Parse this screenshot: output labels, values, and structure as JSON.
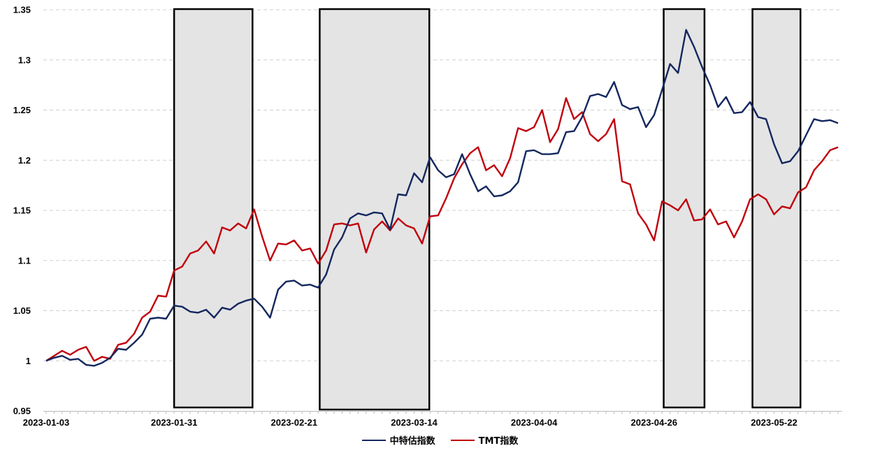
{
  "chart_data": {
    "type": "line",
    "xlabel": "",
    "ylabel": "",
    "ylim": [
      0.95,
      1.35
    ],
    "yticks": [
      0.95,
      1,
      1.05,
      1.1,
      1.15,
      1.2,
      1.25,
      1.3,
      1.35
    ],
    "ytick_labels": [
      "0.95",
      "1",
      "1.05",
      "1.1",
      "1.15",
      "1.2",
      "1.25",
      "1.3",
      "1.35"
    ],
    "x_tick_labels": [
      {
        "index": 0,
        "label": "2023-01-03"
      },
      {
        "index": 16,
        "label": "2023-01-31"
      },
      {
        "index": 31,
        "label": "2023-02-21"
      },
      {
        "index": 46,
        "label": "2023-03-14"
      },
      {
        "index": 61,
        "label": "2023-04-04"
      },
      {
        "index": 76,
        "label": "2023-04-26"
      },
      {
        "index": 91,
        "label": "2023-05-22"
      }
    ],
    "grid": "horizontal dashed",
    "legend_position": "bottom",
    "colors": {
      "background": "#ffffff",
      "shade": "#e4e4e4",
      "shade_border": "#000000",
      "grid": "#cfcfcf"
    },
    "shaded_regions": [
      {
        "start": 16.0,
        "end": 25.8
      },
      {
        "start": 34.2,
        "end": 47.9
      },
      {
        "start": 77.2,
        "end": 82.3
      },
      {
        "start": 88.3,
        "end": 94.3
      }
    ],
    "series": [
      {
        "name": "中特估指数",
        "color": "#14275e",
        "values": [
          1.0,
          1.003,
          1.005,
          1.001,
          1.002,
          0.996,
          0.995,
          0.998,
          1.003,
          1.012,
          1.011,
          1.018,
          1.026,
          1.042,
          1.043,
          1.042,
          1.055,
          1.054,
          1.049,
          1.048,
          1.051,
          1.043,
          1.053,
          1.051,
          1.057,
          1.06,
          1.062,
          1.054,
          1.043,
          1.071,
          1.079,
          1.08,
          1.075,
          1.076,
          1.073,
          1.086,
          1.111,
          1.123,
          1.142,
          1.147,
          1.145,
          1.148,
          1.147,
          1.131,
          1.166,
          1.165,
          1.187,
          1.178,
          1.203,
          1.19,
          1.183,
          1.186,
          1.206,
          1.186,
          1.169,
          1.174,
          1.164,
          1.165,
          1.169,
          1.178,
          1.209,
          1.21,
          1.206,
          1.206,
          1.207,
          1.228,
          1.229,
          1.243,
          1.264,
          1.266,
          1.263,
          1.278,
          1.255,
          1.251,
          1.253,
          1.233,
          1.245,
          1.27,
          1.296,
          1.287,
          1.33,
          1.313,
          1.293,
          1.275,
          1.253,
          1.263,
          1.247,
          1.248,
          1.258,
          1.243,
          1.241,
          1.216,
          1.197,
          1.199,
          1.209,
          1.225,
          1.241,
          1.239,
          1.24,
          1.237
        ]
      },
      {
        "name": "TMT指数",
        "color": "#c0000c",
        "values": [
          1.0,
          1.005,
          1.01,
          1.006,
          1.011,
          1.014,
          1.0,
          1.004,
          1.002,
          1.016,
          1.018,
          1.027,
          1.043,
          1.049,
          1.065,
          1.064,
          1.09,
          1.094,
          1.107,
          1.11,
          1.119,
          1.107,
          1.133,
          1.13,
          1.137,
          1.132,
          1.151,
          1.124,
          1.1,
          1.117,
          1.116,
          1.12,
          1.11,
          1.112,
          1.097,
          1.11,
          1.136,
          1.137,
          1.135,
          1.137,
          1.108,
          1.131,
          1.139,
          1.13,
          1.142,
          1.135,
          1.132,
          1.117,
          1.144,
          1.145,
          1.162,
          1.182,
          1.196,
          1.207,
          1.213,
          1.19,
          1.195,
          1.184,
          1.202,
          1.232,
          1.229,
          1.233,
          1.25,
          1.218,
          1.231,
          1.262,
          1.241,
          1.248,
          1.226,
          1.219,
          1.226,
          1.241,
          1.179,
          1.176,
          1.147,
          1.136,
          1.12,
          1.159,
          1.155,
          1.15,
          1.161,
          1.14,
          1.141,
          1.151,
          1.136,
          1.139,
          1.123,
          1.139,
          1.161,
          1.166,
          1.161,
          1.146,
          1.154,
          1.152,
          1.168,
          1.173,
          1.19,
          1.199,
          1.21,
          1.213
        ]
      }
    ]
  }
}
